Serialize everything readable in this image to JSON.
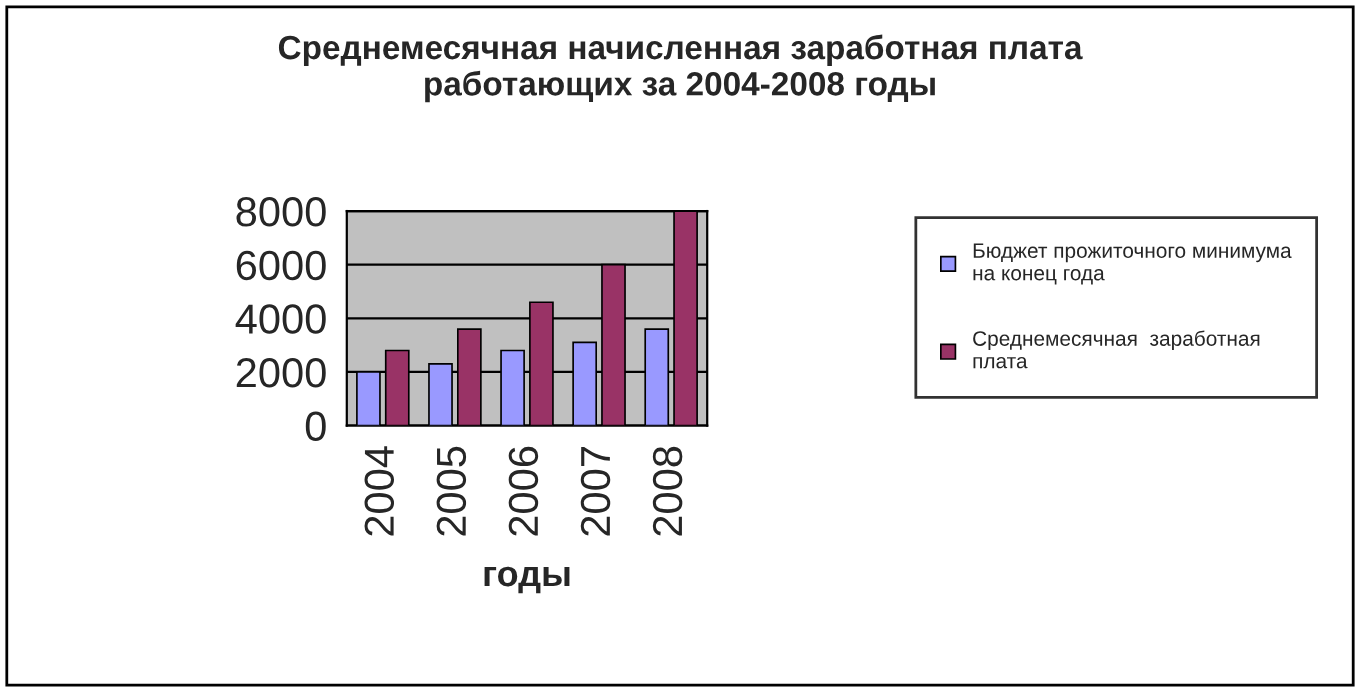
{
  "chart_data": {
    "type": "bar",
    "title": "Среднемесячная начисленная заработная плата\nработающих за 2004-2008 годы",
    "xlabel": "годы",
    "categories": [
      "2004",
      "2005",
      "2006",
      "2007",
      "2008"
    ],
    "series": [
      {
        "name": "Бюджет прожиточного минимума\nна конец года",
        "color": "#9999ff",
        "values": [
          2000,
          2300,
          2800,
          3100,
          3600
        ]
      },
      {
        "name": "Среднемесячная  заработная\nплата",
        "color": "#993366",
        "values": [
          2800,
          3600,
          4600,
          6000,
          8000
        ]
      }
    ],
    "ylim": [
      0,
      8000
    ],
    "yticks": [
      0,
      2000,
      4000,
      6000,
      8000
    ],
    "grid": "y",
    "legend": "right"
  }
}
